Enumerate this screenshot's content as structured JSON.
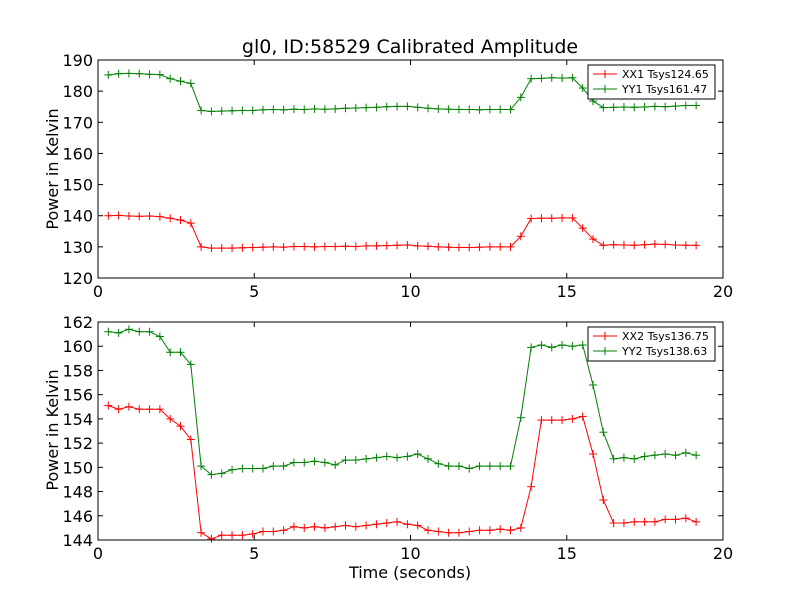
{
  "chart_data": [
    {
      "type": "line",
      "title": "gl0, ID:58529 Calibrated Amplitude",
      "xlabel": "",
      "ylabel": "Power in Kelvin",
      "xlim": [
        0,
        20
      ],
      "ylim": [
        120,
        190
      ],
      "xticks": [
        0,
        5,
        10,
        15,
        20
      ],
      "yticks": [
        120,
        130,
        140,
        150,
        160,
        170,
        180,
        190
      ],
      "grid": false,
      "legend_position": "top-right",
      "x": [
        0.33,
        0.66,
        0.99,
        1.32,
        1.65,
        1.98,
        2.31,
        2.64,
        2.97,
        3.3,
        3.63,
        3.96,
        4.29,
        4.62,
        4.95,
        5.28,
        5.61,
        5.94,
        6.27,
        6.6,
        6.93,
        7.26,
        7.59,
        7.92,
        8.25,
        8.58,
        8.91,
        9.24,
        9.57,
        9.9,
        10.23,
        10.56,
        10.89,
        11.22,
        11.55,
        11.88,
        12.21,
        12.54,
        12.87,
        13.2,
        13.53,
        13.86,
        14.19,
        14.52,
        14.85,
        15.18,
        15.51,
        15.84,
        16.17,
        16.5,
        16.83,
        17.16,
        17.49,
        17.82,
        18.15,
        18.48,
        18.81,
        19.14
      ],
      "series": [
        {
          "name": "XX1 Tsys124.65",
          "color": "#ff0000",
          "values": [
            140.0,
            140.1,
            139.9,
            139.8,
            139.9,
            139.7,
            139.2,
            138.6,
            137.6,
            130.0,
            129.6,
            129.6,
            129.6,
            129.7,
            129.8,
            129.9,
            130.0,
            129.9,
            130.1,
            130.1,
            130.0,
            130.1,
            130.1,
            130.2,
            130.1,
            130.3,
            130.3,
            130.4,
            130.5,
            130.6,
            130.3,
            130.2,
            130.0,
            129.9,
            129.8,
            129.8,
            129.9,
            130.0,
            130.0,
            130.0,
            133.4,
            139.1,
            139.2,
            139.2,
            139.3,
            139.3,
            136.0,
            132.5,
            130.5,
            130.7,
            130.6,
            130.5,
            130.7,
            130.9,
            130.8,
            130.6,
            130.5,
            130.5
          ]
        },
        {
          "name": "YY1 Tsys161.47",
          "color": "#008000",
          "values": [
            185.2,
            185.6,
            185.7,
            185.6,
            185.4,
            185.3,
            184.0,
            183.2,
            182.5,
            173.8,
            173.5,
            173.6,
            173.7,
            173.8,
            173.8,
            174.0,
            174.1,
            174.0,
            174.2,
            174.1,
            174.3,
            174.2,
            174.3,
            174.5,
            174.6,
            174.7,
            174.8,
            175.0,
            175.1,
            175.1,
            174.8,
            174.5,
            174.3,
            174.2,
            174.1,
            174.1,
            174.0,
            174.1,
            174.1,
            174.1,
            178.0,
            184.0,
            184.1,
            184.3,
            184.2,
            184.3,
            181.0,
            176.8,
            174.7,
            174.8,
            174.9,
            174.8,
            174.9,
            175.1,
            175.0,
            175.2,
            175.4,
            175.4
          ]
        }
      ]
    },
    {
      "type": "line",
      "title": "",
      "xlabel": "Time (seconds)",
      "ylabel": "Power in Kelvin",
      "xlim": [
        0,
        20
      ],
      "ylim": [
        144,
        162
      ],
      "xticks": [
        0,
        5,
        10,
        15,
        20
      ],
      "yticks": [
        144,
        146,
        148,
        150,
        152,
        154,
        156,
        158,
        160,
        162
      ],
      "grid": false,
      "legend_position": "top-right",
      "x": [
        0.33,
        0.66,
        0.99,
        1.32,
        1.65,
        1.98,
        2.31,
        2.64,
        2.97,
        3.3,
        3.63,
        3.96,
        4.29,
        4.62,
        4.95,
        5.28,
        5.61,
        5.94,
        6.27,
        6.6,
        6.93,
        7.26,
        7.59,
        7.92,
        8.25,
        8.58,
        8.91,
        9.24,
        9.57,
        9.9,
        10.23,
        10.56,
        10.89,
        11.22,
        11.55,
        11.88,
        12.21,
        12.54,
        12.87,
        13.2,
        13.53,
        13.86,
        14.19,
        14.52,
        14.85,
        15.18,
        15.51,
        15.84,
        16.17,
        16.5,
        16.83,
        17.16,
        17.49,
        17.82,
        18.15,
        18.48,
        18.81,
        19.14
      ],
      "series": [
        {
          "name": "XX2 Tsys136.75",
          "color": "#ff0000",
          "values": [
            155.1,
            154.8,
            155.0,
            154.8,
            154.8,
            154.8,
            154.0,
            153.4,
            152.3,
            144.6,
            144.1,
            144.4,
            144.4,
            144.4,
            144.5,
            144.7,
            144.7,
            144.8,
            145.1,
            145.0,
            145.1,
            145.0,
            145.1,
            145.2,
            145.1,
            145.2,
            145.3,
            145.4,
            145.5,
            145.3,
            145.2,
            144.8,
            144.7,
            144.6,
            144.6,
            144.7,
            144.8,
            144.8,
            144.9,
            144.8,
            145.0,
            148.4,
            153.9,
            153.9,
            153.9,
            154.0,
            154.2,
            151.1,
            147.3,
            145.4,
            145.4,
            145.5,
            145.5,
            145.5,
            145.7,
            145.7,
            145.8,
            145.5
          ]
        },
        {
          "name": "YY2 Tsys138.63",
          "color": "#008000",
          "values": [
            161.2,
            161.1,
            161.4,
            161.2,
            161.2,
            160.8,
            159.5,
            159.5,
            158.5,
            150.1,
            149.4,
            149.5,
            149.8,
            149.9,
            149.9,
            149.9,
            150.1,
            150.1,
            150.4,
            150.4,
            150.5,
            150.4,
            150.2,
            150.6,
            150.6,
            150.7,
            150.8,
            150.9,
            150.8,
            150.9,
            151.1,
            150.7,
            150.3,
            150.1,
            150.1,
            149.9,
            150.1,
            150.1,
            150.1,
            150.1,
            154.1,
            159.9,
            160.1,
            159.9,
            160.1,
            160.0,
            160.1,
            156.8,
            152.9,
            150.7,
            150.8,
            150.7,
            150.9,
            151.0,
            151.1,
            151.0,
            151.2,
            151.0
          ]
        }
      ]
    }
  ]
}
